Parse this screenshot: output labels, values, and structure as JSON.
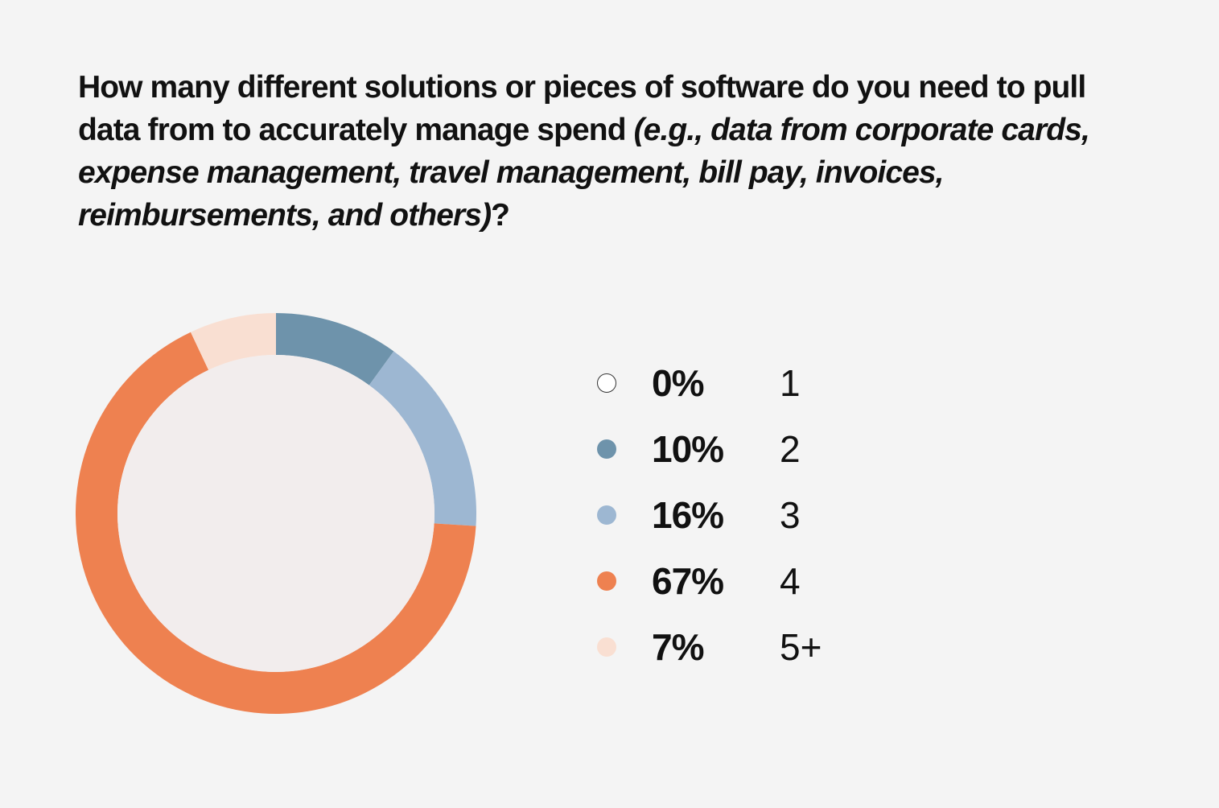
{
  "question": {
    "main": "How many different solutions or pieces of software do you need to pull data from to accurately manage spend  ",
    "examples": "(e.g., data from corporate cards, expense management, travel management, bill pay, invoices, reimbursements, and others)",
    "end": "?"
  },
  "chart_data": {
    "type": "pie",
    "style": "donut",
    "categories": [
      "1",
      "2",
      "3",
      "4",
      "5+"
    ],
    "values": [
      0,
      10,
      16,
      67,
      7
    ],
    "value_labels": [
      "0%",
      "10%",
      "16%",
      "67%",
      "7%"
    ],
    "colors": [
      "#ffffff",
      "#6e93ab",
      "#9db7d2",
      "#ee8150",
      "#f9dfd2"
    ],
    "center_fill": "#f2eded",
    "legend_position": "right"
  }
}
